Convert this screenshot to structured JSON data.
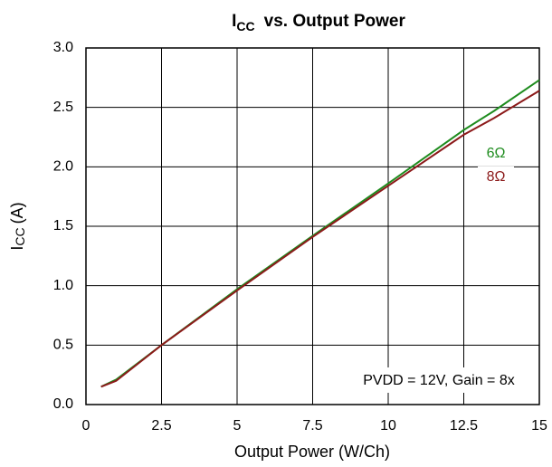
{
  "chart_data": {
    "type": "line",
    "title": {
      "symbol": "I",
      "subscript": "CC",
      "text": "vs. Output Power"
    },
    "x_label": "Output Power (W/Ch)",
    "y_label": {
      "symbol": "I",
      "subscript": "CC",
      "text": "(A)"
    },
    "annotation": "PVDD = 12V, Gain = 8x",
    "x": [
      0.5,
      1,
      2.5,
      5,
      7.5,
      10,
      12.5,
      13.5,
      15
    ],
    "series": [
      {
        "name": "6Ω",
        "color": "#1e8c1e",
        "values": [
          0.15,
          0.21,
          0.5,
          0.97,
          1.42,
          1.86,
          2.31,
          2.47,
          2.73
        ]
      },
      {
        "name": "8Ω",
        "color": "#8c1a1a",
        "values": [
          0.15,
          0.2,
          0.5,
          0.96,
          1.41,
          1.84,
          2.27,
          2.41,
          2.64
        ]
      }
    ],
    "xlim": [
      0,
      15
    ],
    "xticks": [
      0,
      2.5,
      5,
      7.5,
      10,
      12.5,
      15
    ],
    "ylim": [
      0,
      3
    ],
    "yticks": [
      {
        "value": 0,
        "label": "0.0"
      },
      {
        "value": 0.5,
        "label": "0.5"
      },
      {
        "value": 1,
        "label": "1.0"
      },
      {
        "value": 1.5,
        "label": "1.5"
      },
      {
        "value": 2,
        "label": "2.0"
      },
      {
        "value": 2.5,
        "label": "2.5"
      },
      {
        "value": 3,
        "label": "3.0"
      }
    ],
    "grid": true
  }
}
